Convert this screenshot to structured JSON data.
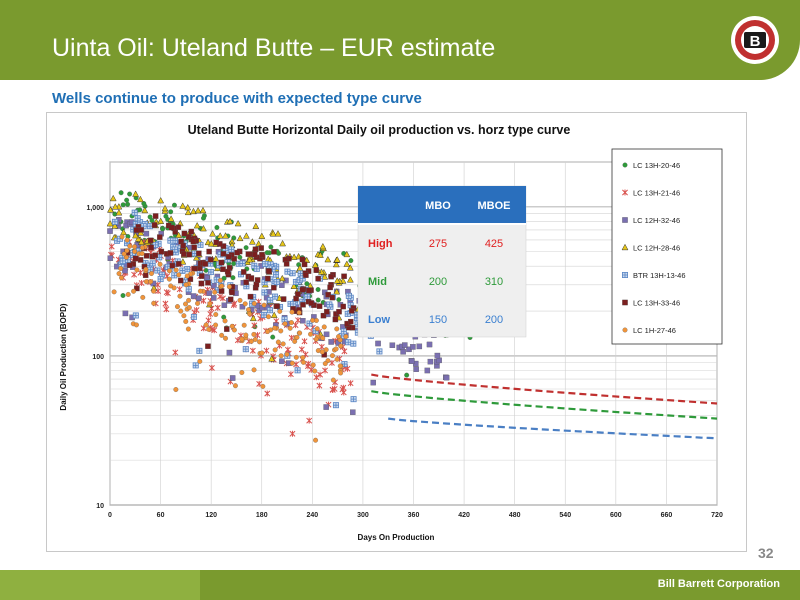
{
  "slide": {
    "title": "Uinta Oil: Uteland Butte – EUR estimate",
    "subtitle": "Wells continue to produce with expected type curve",
    "page_number": "32",
    "company": "Bill Barrett Corporation",
    "logo_letter": "B",
    "accent_color": "#7a9a2e",
    "subtitle_color": "#1f6fb5"
  },
  "chart_data": {
    "type": "scatter",
    "title": "Uteland Butte Horizontal Daily oil production vs. horz type curve",
    "xlabel": "Days On Production",
    "ylabel": "Daily Oil Production (BOPD)",
    "xlim": [
      0,
      720
    ],
    "ylim": [
      10,
      2000
    ],
    "yscale": "log",
    "grid": true,
    "legend_position": "top-right",
    "x_ticks": [
      "0",
      "60",
      "120",
      "180",
      "240",
      "300",
      "360",
      "420",
      "480",
      "540",
      "600",
      "660",
      "720"
    ],
    "y_ticks": [
      {
        "value": 10,
        "label": "10"
      },
      {
        "value": 100,
        "label": "100"
      },
      {
        "value": 1000,
        "label": "1,000"
      }
    ],
    "series": [
      {
        "name": "LC 13H-20-46",
        "marker": "circle",
        "color": "#2e9a3a",
        "x_range": [
          0,
          430
        ],
        "decay": 0.0038,
        "q0": 850,
        "floor": 35
      },
      {
        "name": "LC 13H-21-46",
        "marker": "asterisk",
        "color": "#d9534f",
        "x_range": [
          0,
          290
        ],
        "decay": 0.007,
        "q0": 500,
        "floor": 12
      },
      {
        "name": "LC 12H-32-46",
        "marker": "square",
        "color": "#7a6fb0",
        "x_range": [
          0,
          410
        ],
        "decay": 0.0045,
        "q0": 550,
        "floor": 30
      },
      {
        "name": "LC 12H-28-46",
        "marker": "triangle",
        "color": "#e6c619",
        "x_range": [
          0,
          320
        ],
        "decay": 0.004,
        "q0": 900,
        "floor": 45
      },
      {
        "name": "BTR 13H-13-46",
        "marker": "square-plus",
        "color": "#5b87c5",
        "x_range": [
          0,
          330
        ],
        "decay": 0.005,
        "q0": 650,
        "floor": 40
      },
      {
        "name": "LC 13H-33-46",
        "marker": "square",
        "color": "#7b1f1f",
        "x_range": [
          20,
          290
        ],
        "decay": 0.0042,
        "q0": 650,
        "floor": 60
      },
      {
        "name": "LC 1H-27-46",
        "marker": "circle",
        "color": "#f0943a",
        "x_range": [
          0,
          280
        ],
        "decay": 0.006,
        "q0": 420,
        "floor": 30
      }
    ],
    "type_curves": [
      {
        "name": "High",
        "color": "#c0302f",
        "x": [
          310,
          720
        ],
        "y": [
          75,
          48
        ]
      },
      {
        "name": "Mid",
        "color": "#2e9a3a",
        "x": [
          310,
          720
        ],
        "y": [
          58,
          38
        ]
      },
      {
        "name": "Low",
        "color": "#4a7fc4",
        "x": [
          330,
          720
        ],
        "y": [
          38,
          28
        ]
      }
    ],
    "table": {
      "columns": [
        "",
        "MBO",
        "MBOE"
      ],
      "rows": [
        {
          "label": "High",
          "mbo": "275",
          "mboe": "425",
          "color": "#e02020"
        },
        {
          "label": "Mid",
          "mbo": "200",
          "mboe": "310",
          "color": "#2e9a3a"
        },
        {
          "label": "Low",
          "mbo": "150",
          "mboe": "200",
          "color": "#3a7fd0"
        }
      ],
      "header_color": "#2a6fbd"
    }
  }
}
